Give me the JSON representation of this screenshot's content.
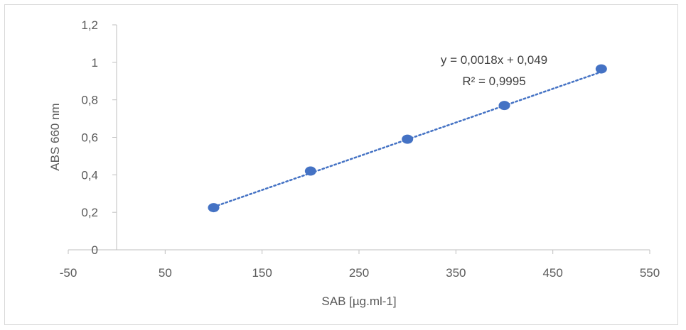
{
  "chart_data": {
    "type": "scatter",
    "title": "",
    "xlabel": "SAB [µg.ml-1]",
    "ylabel": "ABS 660 nm",
    "xlim": [
      -50,
      550
    ],
    "ylim": [
      0,
      1.2
    ],
    "x_ticks": [
      "-50",
      "50",
      "150",
      "250",
      "350",
      "450",
      "550"
    ],
    "y_ticks": [
      "0",
      "0,2",
      "0,4",
      "0,6",
      "0,8",
      "1",
      "1,2"
    ],
    "grid": false,
    "legend": "none",
    "series": [
      {
        "x": [
          100,
          200,
          300,
          400,
          500
        ],
        "y": [
          0.225,
          0.42,
          0.59,
          0.77,
          0.965
        ],
        "color": "#4472c4"
      }
    ],
    "trendline": {
      "type": "linear",
      "slope": 0.0018,
      "intercept": 0.049,
      "color": "#4472c4",
      "equation": "y = 0,0018x + 0,049",
      "r_squared": "R² = 0,9995"
    }
  }
}
